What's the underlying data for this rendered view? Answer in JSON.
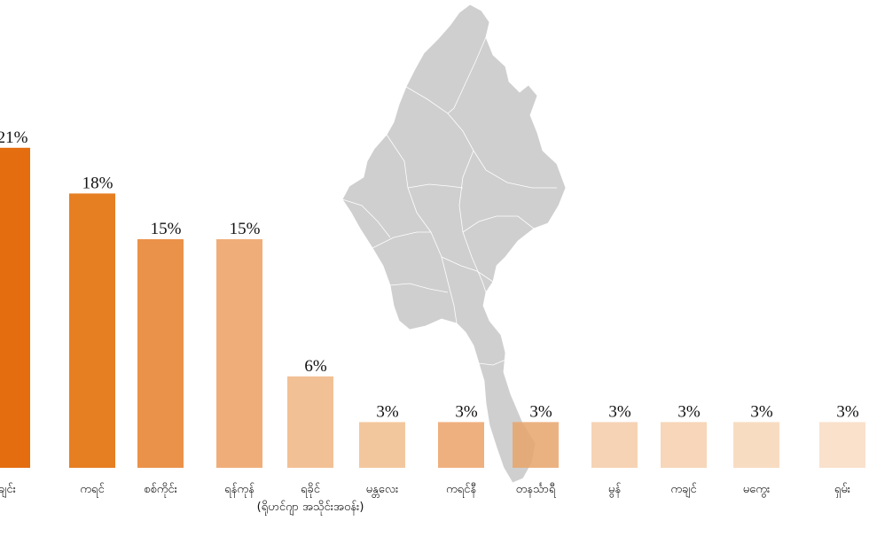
{
  "chart_data": {
    "type": "bar",
    "categories": [
      "ချင်း",
      "ကရင်",
      "စစ်ကိုင်း",
      "ရန်ကုန်",
      "ရခိုင် (ရိုဟင်ဂျာ အသိုင်းအဝန်း)",
      "မန္တလေး",
      "ကရင်နီ",
      "တနင်္သာရီ",
      "မွန်",
      "ကချင်",
      "မကွေး",
      "ရှမ်း"
    ],
    "values": [
      21,
      18,
      15,
      15,
      6,
      3,
      3,
      3,
      3,
      3,
      3,
      3
    ],
    "value_labels": [
      "21%",
      "18%",
      "15%",
      "15%",
      "6%",
      "3%",
      "3%",
      "3%",
      "3%",
      "3%",
      "3%",
      "3%"
    ],
    "colors": [
      "#e46d10",
      "#e67e22",
      "#ea924a",
      "#efae79",
      "#f2c095",
      "#f3c79e",
      "#efb07f",
      "#e8a56b",
      "#f6d3b4",
      "#f7d6b9",
      "#f8dcc2",
      "#f9e1cc"
    ],
    "ylim": [
      0,
      21
    ],
    "grid": false,
    "background_map": "Myanmar map (grey)"
  }
}
